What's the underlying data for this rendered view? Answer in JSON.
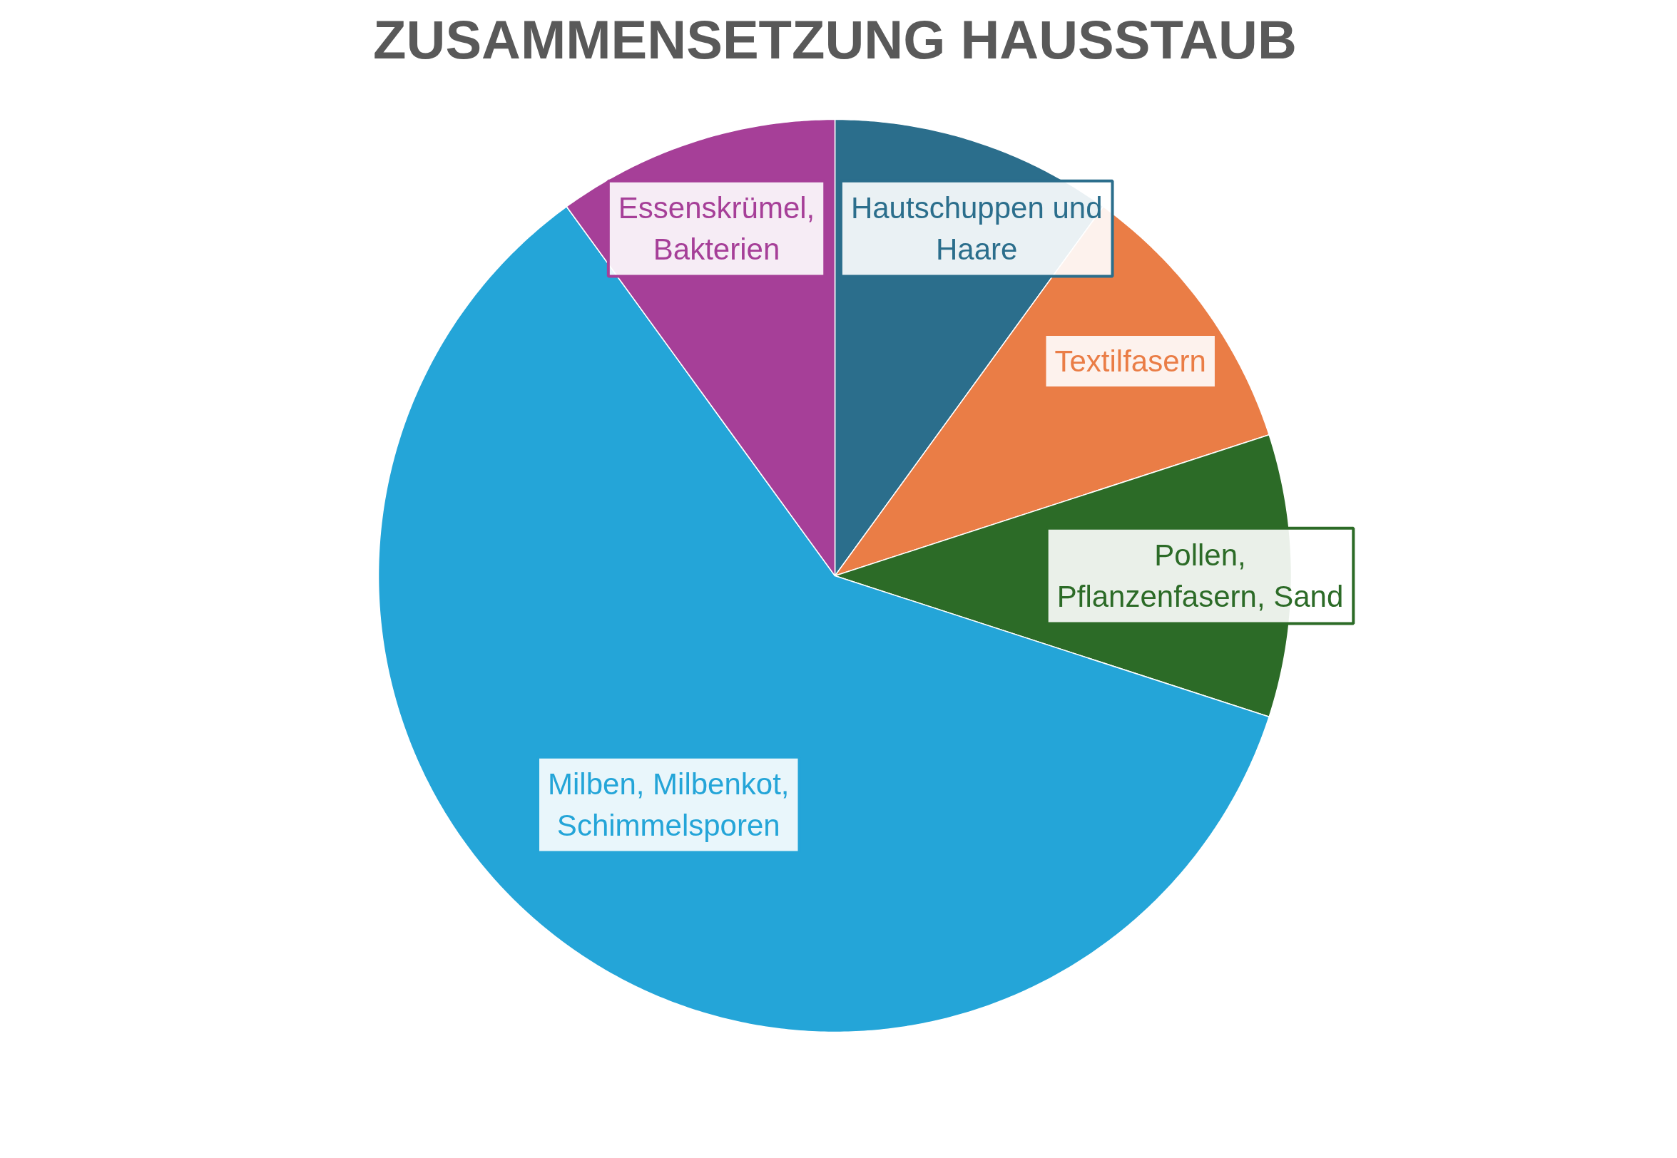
{
  "chart_data": {
    "type": "pie",
    "title": "ZUSAMMENSETZUNG HAUSSTAUB",
    "categories": [
      "Hautschuppen und Haare",
      "Textilfasern",
      "Pollen, Pflanzenfasern, Sand",
      "Milben, Milbenkot, Schimmelsporen",
      "Essenskrümel, Bakterien"
    ],
    "values": [
      10,
      10,
      10,
      60,
      10
    ],
    "colors": [
      "#2b6e8c",
      "#ea7d46",
      "#2c6b27",
      "#24a5d8",
      "#a63f98"
    ]
  }
}
